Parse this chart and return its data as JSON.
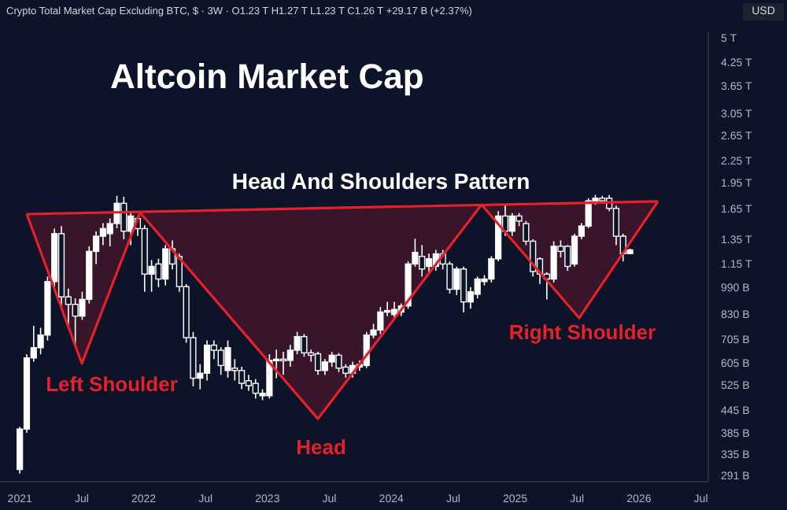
{
  "chart_data": {
    "type": "candlestick",
    "title": "Altcoin Market Cap",
    "subtitle": "Crypto Total Market Cap Excluding BTC, $ · 3W · O1.23 T  H1.27 T  L1.23 T  C1.26 T  +29.17 B (+2.37%)",
    "annotations": [
      "USD",
      "Head And Shoulders Pattern",
      "Left Shoulder",
      "Head",
      "Right Shoulder"
    ],
    "x": [
      2021.0,
      2021.056,
      2021.112,
      2021.168,
      2021.224,
      2021.28,
      2021.336,
      2021.392,
      2021.448,
      2021.504,
      2021.56,
      2021.616,
      2021.672,
      2021.728,
      2021.784,
      2021.84,
      2021.896,
      2021.952,
      2022.008,
      2022.064,
      2022.12,
      2022.176,
      2022.232,
      2022.288,
      2022.344,
      2022.4,
      2022.456,
      2022.512,
      2022.568,
      2022.624,
      2022.68,
      2022.736,
      2022.792,
      2022.848,
      2022.904,
      2022.96,
      2023.016,
      2023.072,
      2023.128,
      2023.184,
      2023.24,
      2023.296,
      2023.352,
      2023.408,
      2023.464,
      2023.52,
      2023.576,
      2023.632,
      2023.688,
      2023.744,
      2023.8,
      2023.856,
      2023.912,
      2023.968,
      2024.024,
      2024.08,
      2024.136,
      2024.192,
      2024.248,
      2024.304,
      2024.36,
      2024.416,
      2024.472,
      2024.528,
      2024.584,
      2024.64,
      2024.696,
      2024.752,
      2024.808,
      2024.864,
      2024.92,
      2024.976,
      2025.032,
      2025.088,
      2025.144,
      2025.2,
      2025.256,
      2025.312,
      2025.368,
      2025.424,
      2025.48,
      2025.536,
      2025.592,
      2025.648,
      2025.704,
      2025.76,
      2025.816,
      2025.872,
      2025.928
    ],
    "ohlc": [
      [
        303000000000.0,
        400000000000.0,
        295000000000.0,
        394000000000.0
      ],
      [
        394000000000.0,
        640000000000.0,
        385000000000.0,
        625000000000.0
      ],
      [
        625000000000.0,
        770000000000.0,
        610000000000.0,
        668000000000.0
      ],
      [
        668000000000.0,
        760000000000.0,
        640000000000.0,
        725000000000.0
      ],
      [
        725000000000.0,
        1060000000000.0,
        700000000000.0,
        1026000000000.0
      ],
      [
        1026000000000.0,
        1447000000000.0,
        990000000000.0,
        1400000000000.0
      ],
      [
        1400000000000.0,
        1470000000000.0,
        880000000000.0,
        929000000000.0
      ],
      [
        929000000000.0,
        980000000000.0,
        760000000000.0,
        885000000000.0
      ],
      [
        885000000000.0,
        920000000000.0,
        680000000000.0,
        820000000000.0
      ],
      [
        820000000000.0,
        960000000000.0,
        800000000000.0,
        914000000000.0
      ],
      [
        914000000000.0,
        1290000000000.0,
        890000000000.0,
        1248000000000.0
      ],
      [
        1248000000000.0,
        1420000000000.0,
        1150000000000.0,
        1377000000000.0
      ],
      [
        1377000000000.0,
        1500000000000.0,
        1300000000000.0,
        1447000000000.0
      ],
      [
        1400000000000.0,
        1545000000000.0,
        1290000000000.0,
        1495000000000.0
      ],
      [
        1495000000000.0,
        1790000000000.0,
        1450000000000.0,
        1705000000000.0
      ],
      [
        1705000000000.0,
        1780000000000.0,
        1350000000000.0,
        1423000000000.0
      ],
      [
        1423000000000.0,
        1620000000000.0,
        1300000000000.0,
        1570000000000.0
      ],
      [
        1545000000000.0,
        1570000000000.0,
        1380000000000.0,
        1447000000000.0
      ],
      [
        1447000000000.0,
        1480000000000.0,
        960000000000.0,
        1077000000000.0
      ],
      [
        1077000000000.0,
        1180000000000.0,
        960000000000.0,
        1132000000000.0
      ],
      [
        1150000000000.0,
        1190000000000.0,
        990000000000.0,
        1043000000000.0
      ],
      [
        1043000000000.0,
        1300000000000.0,
        1000000000000.0,
        1269000000000.0
      ],
      [
        1269000000000.0,
        1340000000000.0,
        1110000000000.0,
        1150000000000.0
      ],
      [
        1208000000000.0,
        1230000000000.0,
        960000000000.0,
        993000000000.0
      ],
      [
        993000000000.0,
        1010000000000.0,
        690000000000.0,
        713000000000.0
      ],
      [
        713000000000.0,
        740000000000.0,
        520000000000.0,
        548000000000.0
      ],
      [
        548000000000.0,
        600000000000.0,
        510000000000.0,
        566000000000.0
      ],
      [
        566000000000.0,
        700000000000.0,
        540000000000.0,
        679000000000.0
      ],
      [
        679000000000.0,
        700000000000.0,
        620000000000.0,
        657000000000.0
      ],
      [
        657000000000.0,
        670000000000.0,
        560000000000.0,
        595000000000.0
      ],
      [
        576000000000.0,
        700000000000.0,
        550000000000.0,
        668000000000.0
      ],
      [
        585000000000.0,
        620000000000.0,
        540000000000.0,
        576000000000.0
      ],
      [
        576000000000.0,
        590000000000.0,
        510000000000.0,
        530000000000.0
      ],
      [
        539000000000.0,
        560000000000.0,
        505000000000.0,
        522000000000.0
      ],
      [
        530000000000.0,
        545000000000.0,
        480000000000.0,
        497000000000.0
      ],
      [
        489000000000.0,
        510000000000.0,
        475000000000.0,
        497000000000.0
      ],
      [
        489000000000.0,
        640000000000.0,
        480000000000.0,
        615000000000.0
      ],
      [
        615000000000.0,
        660000000000.0,
        548000000000.0,
        620000000000.0
      ],
      [
        620000000000.0,
        650000000000.0,
        560000000000.0,
        615000000000.0
      ],
      [
        615000000000.0,
        680000000000.0,
        590000000000.0,
        657000000000.0
      ],
      [
        657000000000.0,
        740000000000.0,
        640000000000.0,
        718000000000.0
      ],
      [
        718000000000.0,
        730000000000.0,
        630000000000.0,
        646000000000.0
      ],
      [
        646000000000.0,
        660000000000.0,
        610000000000.0,
        636000000000.0
      ],
      [
        642000000000.0,
        650000000000.0,
        560000000000.0,
        576000000000.0
      ],
      [
        576000000000.0,
        620000000000.0,
        560000000000.0,
        609000000000.0
      ],
      [
        609000000000.0,
        650000000000.0,
        590000000000.0,
        636000000000.0
      ],
      [
        636000000000.0,
        645000000000.0,
        570000000000.0,
        585000000000.0
      ],
      [
        589000000000.0,
        600000000000.0,
        550000000000.0,
        566000000000.0
      ],
      [
        566000000000.0,
        610000000000.0,
        550000000000.0,
        595000000000.0
      ],
      [
        589000000000.0,
        615000000000.0,
        575000000000.0,
        599000000000.0
      ],
      [
        595000000000.0,
        740000000000.0,
        585000000000.0,
        725000000000.0
      ],
      [
        725000000000.0,
        780000000000.0,
        710000000000.0,
        749000000000.0
      ],
      [
        749000000000.0,
        870000000000.0,
        730000000000.0,
        842000000000.0
      ],
      [
        842000000000.0,
        900000000000.0,
        820000000000.0,
        850000000000.0
      ],
      [
        828000000000.0,
        900000000000.0,
        800000000000.0,
        856000000000.0
      ],
      [
        842000000000.0,
        890000000000.0,
        820000000000.0,
        876000000000.0
      ],
      [
        876000000000.0,
        1170000000000.0,
        860000000000.0,
        1150000000000.0
      ],
      [
        1150000000000.0,
        1355000000000.0,
        1130000000000.0,
        1240000000000.0
      ],
      [
        1208000000000.0,
        1300000000000.0,
        1060000000000.0,
        1113000000000.0
      ],
      [
        1132000000000.0,
        1230000000000.0,
        1080000000000.0,
        1189000000000.0
      ],
      [
        1132000000000.0,
        1260000000000.0,
        1100000000000.0,
        1228000000000.0
      ],
      [
        1228000000000.0,
        1260000000000.0,
        1110000000000.0,
        1150000000000.0
      ],
      [
        1150000000000.0,
        1170000000000.0,
        950000000000.0,
        976000000000.0
      ],
      [
        976000000000.0,
        1130000000000.0,
        940000000000.0,
        1113000000000.0
      ],
      [
        1113000000000.0,
        1130000000000.0,
        840000000000.0,
        899000000000.0
      ],
      [
        899000000000.0,
        990000000000.0,
        860000000000.0,
        960000000000.0
      ],
      [
        945000000000.0,
        1060000000000.0,
        920000000000.0,
        1043000000000.0
      ],
      [
        1026000000000.0,
        1070000000000.0,
        1000000000000.0,
        1043000000000.0
      ],
      [
        1043000000000.0,
        1210000000000.0,
        1020000000000.0,
        1189000000000.0
      ],
      [
        1189000000000.0,
        1620000000000.0,
        1170000000000.0,
        1570000000000.0
      ],
      [
        1570000000000.0,
        1700000000000.0,
        1380000000000.0,
        1423000000000.0
      ],
      [
        1423000000000.0,
        1600000000000.0,
        1380000000000.0,
        1570000000000.0
      ],
      [
        1570000000000.0,
        1600000000000.0,
        1470000000000.0,
        1520000000000.0
      ],
      [
        1495000000000.0,
        1520000000000.0,
        1300000000000.0,
        1333000000000.0
      ],
      [
        1333000000000.0,
        1350000000000.0,
        1060000000000.0,
        1095000000000.0
      ],
      [
        1189000000000.0,
        1200000000000.0,
        1010000000000.0,
        1077000000000.0
      ],
      [
        1077000000000.0,
        1090000000000.0,
        914000000000.0,
        1043000000000.0
      ],
      [
        1043000000000.0,
        1333000000000.0,
        1020000000000.0,
        1290000000000.0
      ],
      [
        1290000000000.0,
        1340000000000.0,
        1200000000000.0,
        1248000000000.0
      ],
      [
        1290000000000.0,
        1300000000000.0,
        1100000000000.0,
        1132000000000.0
      ],
      [
        1150000000000.0,
        1400000000000.0,
        1130000000000.0,
        1377000000000.0
      ],
      [
        1377000000000.0,
        1500000000000.0,
        1350000000000.0,
        1471000000000.0
      ],
      [
        1471000000000.0,
        1762000000000.0,
        1450000000000.0,
        1733000000000.0
      ],
      [
        1705000000000.0,
        1800000000000.0,
        1690000000000.0,
        1762000000000.0
      ],
      [
        1762000000000.0,
        1790000000000.0,
        1700000000000.0,
        1733000000000.0
      ],
      [
        1762000000000.0,
        1800000000000.0,
        1620000000000.0,
        1650000000000.0
      ],
      [
        1650000000000.0,
        1680000000000.0,
        1300000000000.0,
        1377000000000.0
      ],
      [
        1377000000000.0,
        1400000000000.0,
        1169000000000.0,
        1230000000000.0
      ],
      [
        1230000000000.0,
        1270000000000.0,
        1230000000000.0,
        1260000000000.0
      ]
    ],
    "color": "#ffffff",
    "log": true,
    "series": [
      {
        "type": "line",
        "color": "#e8202a",
        "x": [
          2021.056,
          2026.153
        ],
        "values": [
          1590000000000.0,
          1726000000000.0
        ]
      },
      {
        "type": "line",
        "color": "#e8202a",
        "x": [
          2021.056,
          2021.501,
          2021.971
        ],
        "values": [
          1590000000000.0,
          603000000000.0,
          1606000000000.0
        ]
      },
      {
        "type": "line",
        "color": "#e8202a",
        "x": [
          2021.971,
          2023.407,
          2024.729
        ],
        "values": [
          1606000000000.0,
          421000000000.0,
          1690000000000.0
        ]
      },
      {
        "type": "line",
        "color": "#e8202a",
        "x": [
          2024.729,
          2025.517,
          2026.153
        ],
        "values": [
          1690000000000.0,
          810000000000.0,
          1726000000000.0
        ]
      }
    ],
    "xlim": [
      2020.84,
      2026.56
    ],
    "xticks": [
      {
        "value": 2021,
        "label": "2021"
      },
      {
        "value": 2021.5,
        "label": "Jul"
      },
      {
        "value": 2022,
        "label": "2022"
      },
      {
        "value": 2022.5,
        "label": "Jul"
      },
      {
        "value": 2023,
        "label": "2023"
      },
      {
        "value": 2023.5,
        "label": "Jul"
      },
      {
        "value": 2024,
        "label": "2024"
      },
      {
        "value": 2024.5,
        "label": "Jul"
      },
      {
        "value": 2025,
        "label": "2025"
      },
      {
        "value": 2025.5,
        "label": "Jul"
      },
      {
        "value": 2026,
        "label": "2026"
      },
      {
        "value": 2026.5,
        "label": "Jul"
      }
    ],
    "ylim": [
      280000000000.0,
      5200000000000.0
    ],
    "yticks": [
      {
        "value": 291000000000.0,
        "label": "291 B"
      },
      {
        "value": 335000000000.0,
        "label": "335 B"
      },
      {
        "value": 385000000000.0,
        "label": "385 B"
      },
      {
        "value": 445000000000.0,
        "label": "445 B"
      },
      {
        "value": 525000000000.0,
        "label": "525 B"
      },
      {
        "value": 605000000000.0,
        "label": "605 B"
      },
      {
        "value": 705000000000.0,
        "label": "705 B"
      },
      {
        "value": 830000000000.0,
        "label": "830 B"
      },
      {
        "value": 990000000000.0,
        "label": "990 B"
      },
      {
        "value": 1150000000000.0,
        "label": "1.15 T"
      },
      {
        "value": 1350000000000.0,
        "label": "1.35 T"
      },
      {
        "value": 1650000000000.0,
        "label": "1.65 T"
      },
      {
        "value": 1950000000000.0,
        "label": "1.95 T"
      },
      {
        "value": 2250000000000.0,
        "label": "2.25 T"
      },
      {
        "value": 2650000000000.0,
        "label": "2.65 T"
      },
      {
        "value": 3050000000000.0,
        "label": "3.05 T"
      },
      {
        "value": 3650000000000.0,
        "label": "3.65 T"
      },
      {
        "value": 4250000000000.0,
        "label": "4.25 T"
      },
      {
        "value": 5000000000000.0,
        "label": "5 T"
      }
    ]
  }
}
